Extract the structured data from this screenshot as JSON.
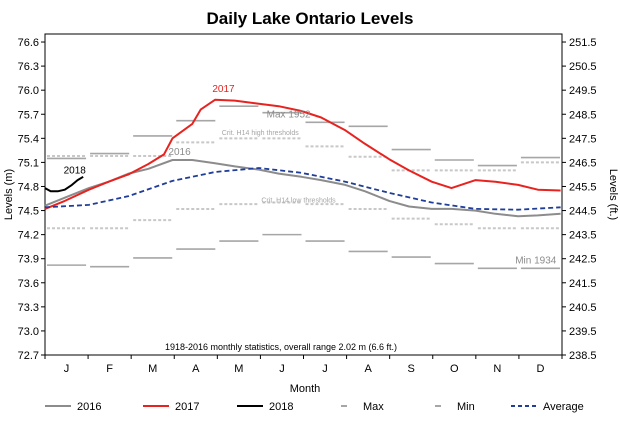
{
  "chart_data": {
    "type": "line",
    "title": "Daily Lake Ontario Levels",
    "xlabel": "Month",
    "ylabel_left": "Levels (m)",
    "ylabel_right": "Levels (ft.)",
    "categories": [
      "J",
      "F",
      "M",
      "A",
      "M",
      "J",
      "J",
      "A",
      "S",
      "O",
      "N",
      "D"
    ],
    "ylim_m": [
      72.7,
      76.7
    ],
    "yticks_m": [
      "72.7",
      "73.0",
      "73.3",
      "73.6",
      "73.9",
      "74.2",
      "74.5",
      "74.8",
      "75.1",
      "75.4",
      "75.7",
      "76.0",
      "76.3",
      "76.6"
    ],
    "yticks_ft": [
      "238.5",
      "239.5",
      "240.5",
      "241.5",
      "242.5",
      "243.5",
      "244.5",
      "245.5",
      "246.5",
      "247.5",
      "248.5",
      "249.5",
      "250.5",
      "251.5"
    ],
    "grid": false,
    "legend_position": "bottom",
    "series": [
      {
        "name": "2016",
        "color": "#8c8c8c",
        "x": [
          1,
          15,
          32,
          46,
          60,
          74,
          91,
          105,
          121,
          135,
          152,
          166,
          182,
          196,
          213,
          227,
          244,
          258,
          274,
          288,
          305,
          319,
          335,
          349,
          365
        ],
        "y": [
          74.56,
          74.66,
          74.78,
          74.86,
          74.96,
          75.02,
          75.13,
          75.13,
          75.09,
          75.05,
          75.01,
          74.96,
          74.92,
          74.88,
          74.82,
          74.74,
          74.62,
          74.55,
          74.52,
          74.52,
          74.5,
          74.46,
          74.43,
          74.44,
          74.46
        ]
      },
      {
        "name": "2017",
        "color": "#e8231f",
        "x": [
          1,
          15,
          32,
          46,
          60,
          74,
          85,
          91,
          105,
          111,
          121,
          135,
          152,
          166,
          182,
          196,
          213,
          227,
          244,
          258,
          274,
          288,
          305,
          319,
          335,
          349,
          365
        ],
        "y": [
          74.52,
          74.62,
          74.76,
          74.86,
          74.95,
          75.08,
          75.2,
          75.4,
          75.58,
          75.76,
          75.88,
          75.87,
          75.83,
          75.8,
          75.74,
          75.66,
          75.5,
          75.33,
          75.14,
          75.0,
          74.86,
          74.78,
          74.88,
          74.86,
          74.82,
          74.76,
          74.75
        ]
      },
      {
        "name": "2018",
        "color": "#000000",
        "x": [
          1,
          5,
          10,
          15,
          20,
          24,
          28
        ],
        "y": [
          74.78,
          74.74,
          74.74,
          74.76,
          74.82,
          74.88,
          74.92
        ]
      },
      {
        "name": "Average",
        "color": "#1f3d99",
        "dash": true,
        "x": [
          1,
          32,
          60,
          91,
          121,
          152,
          182,
          213,
          244,
          274,
          305,
          335,
          365
        ],
        "y": [
          74.54,
          74.57,
          74.68,
          74.87,
          74.98,
          75.03,
          74.97,
          74.86,
          74.72,
          74.6,
          74.52,
          74.51,
          74.54
        ]
      }
    ],
    "max_steps": {
      "color": "#a6a6a6",
      "values": [
        75.15,
        75.21,
        75.43,
        75.62,
        75.8,
        75.72,
        75.6,
        75.55,
        75.26,
        75.13,
        75.06,
        75.16
      ],
      "crit_high": [
        75.18,
        75.18,
        75.18,
        75.35,
        75.4,
        75.4,
        75.3,
        75.17,
        75.0,
        75.0,
        75.0,
        75.1
      ]
    },
    "min_steps": {
      "color": "#a6a6a6",
      "values": [
        73.82,
        73.8,
        73.91,
        74.02,
        74.12,
        74.2,
        74.12,
        73.99,
        73.92,
        73.84,
        73.78,
        73.78
      ],
      "crit_low": [
        74.28,
        74.28,
        74.38,
        74.52,
        74.58,
        74.6,
        74.58,
        74.52,
        74.4,
        74.33,
        74.28,
        74.28
      ]
    },
    "annotations": {
      "label_2017": "2017",
      "label_2016": "2016",
      "label_2018": "2018",
      "max_note": "Max 1952",
      "min_note": "Min 1934",
      "crit_high": "Crit. H14 high thresholds",
      "crit_low": "Crit. H14 low thresholds",
      "footnote": "1918-2016 monthly statistics, overall range 2.02 m (6.6 ft.)"
    }
  },
  "legend": {
    "items": [
      {
        "label": "2016",
        "kind": "line",
        "color": "#8c8c8c"
      },
      {
        "label": "2017",
        "kind": "line",
        "color": "#e8231f"
      },
      {
        "label": "2018",
        "kind": "line",
        "color": "#000000"
      },
      {
        "label": "Max",
        "kind": "dash-marker",
        "color": "#a6a6a6"
      },
      {
        "label": "Min",
        "kind": "dash-marker",
        "color": "#a6a6a6"
      },
      {
        "label": "Average",
        "kind": "dashed",
        "color": "#1f3d99"
      }
    ]
  }
}
